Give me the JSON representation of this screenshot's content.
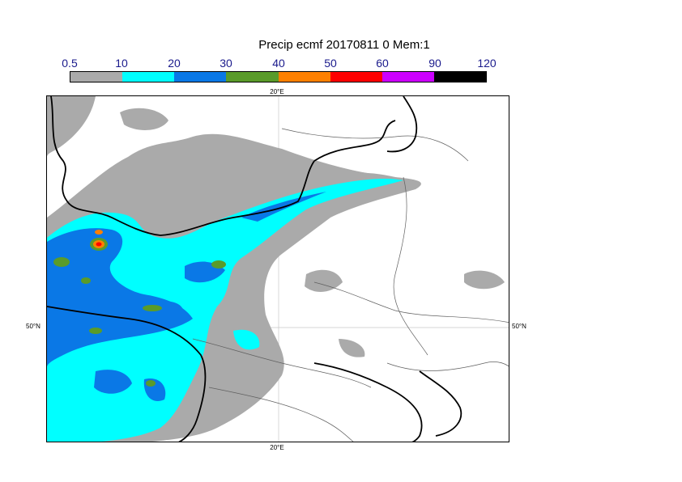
{
  "title": "Precip ecmf 20170811 0 Mem:1",
  "colorbar": {
    "labels": [
      "0.5",
      "10",
      "20",
      "30",
      "40",
      "50",
      "60",
      "90",
      "120"
    ],
    "colors": [
      "#aaaaaa",
      "#00ffff",
      "#0a78e6",
      "#5a9b2a",
      "#ff8000",
      "#ff0000",
      "#cc00ff",
      "#000000"
    ]
  },
  "gridlabels": {
    "lon_top": "20°E",
    "lon_bottom": "20°E",
    "lat_left": "50°N",
    "lat_right": "50°N"
  }
}
